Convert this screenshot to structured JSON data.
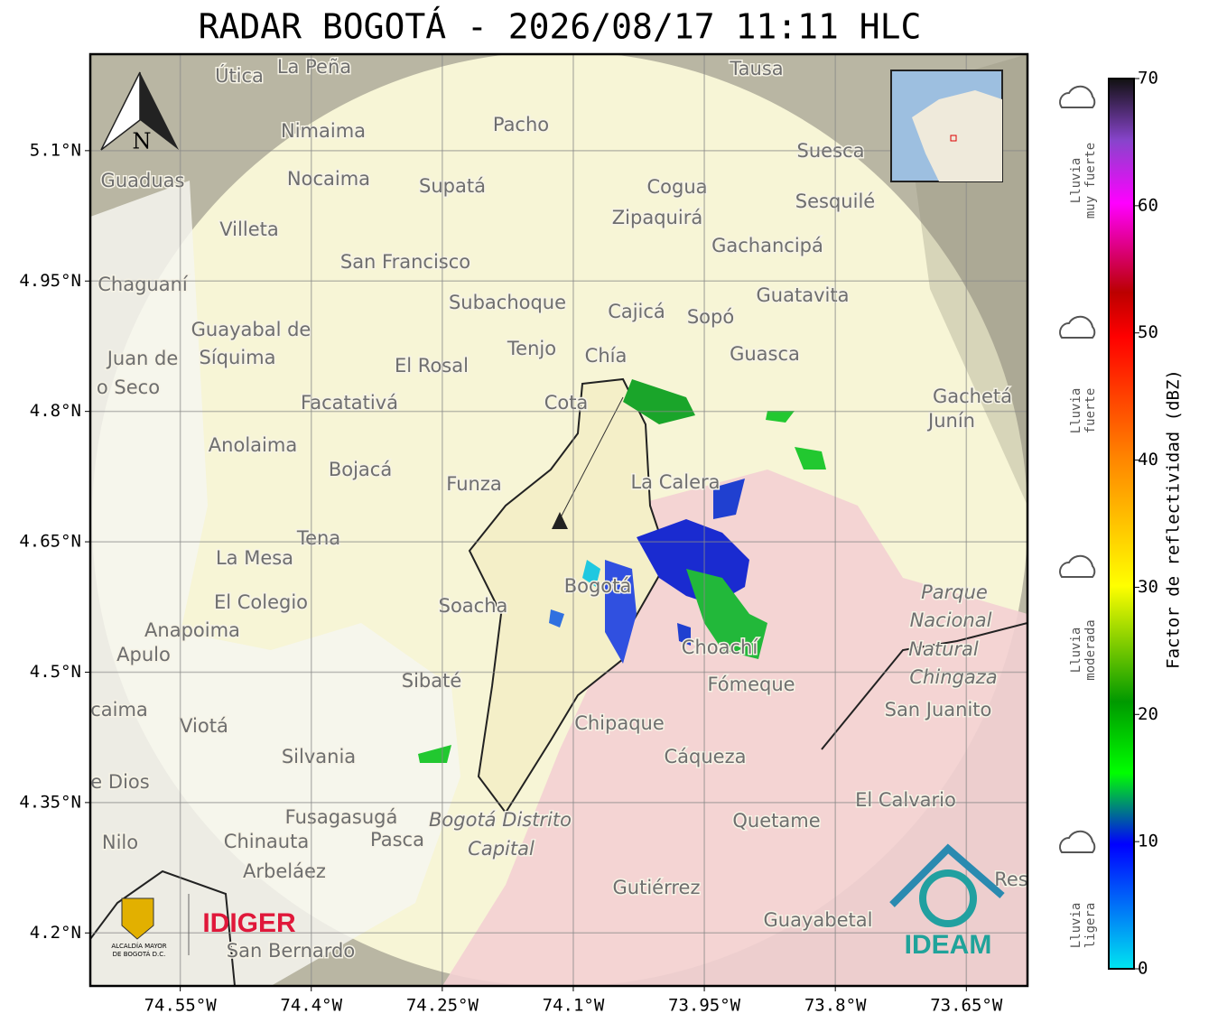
{
  "title": "RADAR BOGOTÁ - 2026/08/17 11:11 HLC",
  "map": {
    "xlim": [
      -74.653,
      -73.58
    ],
    "ylim": [
      4.139,
      5.211
    ],
    "xticks": [
      {
        "value": -74.55,
        "label": "74.55°W"
      },
      {
        "value": -74.4,
        "label": "74.4°W"
      },
      {
        "value": -74.25,
        "label": "74.25°W"
      },
      {
        "value": -74.1,
        "label": "74.1°W"
      },
      {
        "value": -73.95,
        "label": "73.95°W"
      },
      {
        "value": -73.8,
        "label": "73.8°W"
      },
      {
        "value": -73.65,
        "label": "73.65°W"
      }
    ],
    "yticks": [
      {
        "value": 5.1,
        "label": "5.1°N"
      },
      {
        "value": 4.95,
        "label": "4.95°N"
      },
      {
        "value": 4.8,
        "label": "4.8°N"
      },
      {
        "value": 4.65,
        "label": "4.65°N"
      },
      {
        "value": 4.5,
        "label": "4.5°N"
      },
      {
        "value": 4.35,
        "label": "4.35°N"
      },
      {
        "value": 4.2,
        "label": "4.2°N"
      }
    ],
    "north": "N",
    "places": [
      "La Peña",
      "Útica",
      "Tausa",
      "Pacho",
      "Nimaima",
      "Guaduas",
      "Nocaima",
      "Supatá",
      "Cogua",
      "Suesca",
      "Sesquilé",
      "Zipaquirá",
      "Villeta",
      "Gachancipá",
      "San Francisco",
      "Chaguaní",
      "Guatavita",
      "Subachoque",
      "Cajicá",
      "Sopó",
      "Guayabal de",
      "Síquima",
      "Tenjo",
      "Chía",
      "Guasca",
      "Juan de",
      "o Seco",
      "El Rosal",
      "Cota",
      "Facatativá",
      "Gachetá",
      "Junín",
      "Anolaima",
      "Bojacá",
      "Funza",
      "La Calera",
      "Tena",
      "La Mesa",
      "Bogotá",
      "Parque",
      "Soacha",
      "El Colegio",
      "Nacional",
      "Anapoima",
      "Choachí",
      "Natural",
      "Apulo",
      "Chingaza",
      "Sibaté",
      "Fómeque",
      "San Juanito",
      "caima",
      "Chipaque",
      "Viotá",
      "Silvania",
      "Cáqueza",
      "e Dios",
      "El Calvario",
      "Fusagasugá",
      "Bogotá Distrito",
      "Quetame",
      "Nilo",
      "Chinauta",
      "Pasca",
      "Capital",
      "Arbeláez",
      "Gutiérrez",
      "Res",
      "Guayabetal",
      "San Bernardo"
    ]
  },
  "logos": {
    "alcaldia": [
      "ALCALDÍA MAYOR",
      "DE BOGOTÁ D.C."
    ],
    "idiger": "IDIGER",
    "ideam": "IDEAM"
  },
  "colorbar": {
    "label": "Factor de reflectividad (dBZ)",
    "lim": [
      0,
      70
    ],
    "ticks": [
      0,
      10,
      20,
      30,
      40,
      50,
      60,
      70
    ]
  },
  "rain_levels": [
    [
      "Lluvia",
      "muy fuerte"
    ],
    [
      "Lluvia",
      "fuerte"
    ],
    [
      "Lluvia",
      "moderada"
    ],
    [
      "Lluvia",
      "ligera"
    ]
  ]
}
